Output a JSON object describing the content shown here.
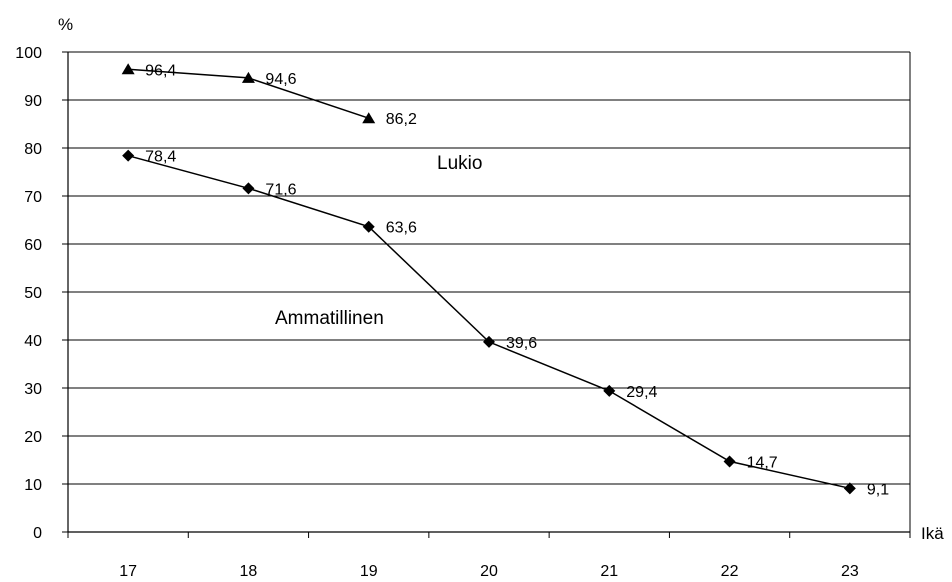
{
  "chart_data": {
    "type": "line",
    "title": "",
    "ylabel": "%",
    "xlabel": "Ikä",
    "ylim": [
      0,
      100
    ],
    "yticks": [
      0,
      10,
      20,
      30,
      40,
      50,
      60,
      70,
      80,
      90,
      100
    ],
    "categories": [
      "17",
      "18",
      "19",
      "20",
      "21",
      "22",
      "23"
    ],
    "grid": true,
    "colors": {
      "line": "#000000",
      "grid": "#000000",
      "background": "#ffffff"
    },
    "series": [
      {
        "name": "Lukio",
        "marker": "triangle",
        "values": [
          96.4,
          94.6,
          86.2,
          null,
          null,
          null,
          null
        ],
        "labels": [
          "96,4",
          "94,6",
          "86,2",
          "",
          "",
          "",
          ""
        ]
      },
      {
        "name": "Ammatillinen",
        "marker": "diamond",
        "values": [
          78.4,
          71.6,
          63.6,
          39.6,
          29.4,
          14.7,
          9.1
        ],
        "labels": [
          "78,4",
          "71,6",
          "63,6",
          "39,6",
          "29,4",
          "14,7",
          "9,1"
        ]
      }
    ]
  }
}
